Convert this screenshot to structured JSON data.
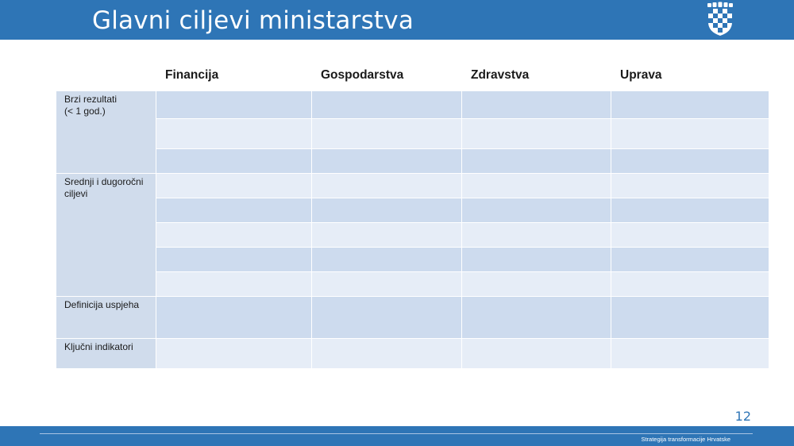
{
  "slide": {
    "title": "Glavni ciljevi ministarstva",
    "page_number": "12",
    "footer": "Strategija transformacije Hrvatske"
  },
  "table": {
    "columns": [
      "Financija",
      "Gospodarstva",
      "Zdravstva",
      "Uprava"
    ],
    "row_groups": [
      {
        "label_line1": "Brzi rezultati",
        "label_line2": "(< 1 god.)",
        "subrows": 3
      },
      {
        "label_line1": "Srednji i dugoročni",
        "label_line2": "ciljevi",
        "subrows": 5
      },
      {
        "label_line1": "Definicija uspjeha",
        "label_line2": "",
        "subrows": 1
      },
      {
        "label_line1": "Ključni indikatori",
        "label_line2": "",
        "subrows": 1
      }
    ]
  },
  "colors": {
    "brand_blue": "#2e75b6",
    "cell_dark": "#cddbee",
    "cell_light": "#e6edf7"
  }
}
